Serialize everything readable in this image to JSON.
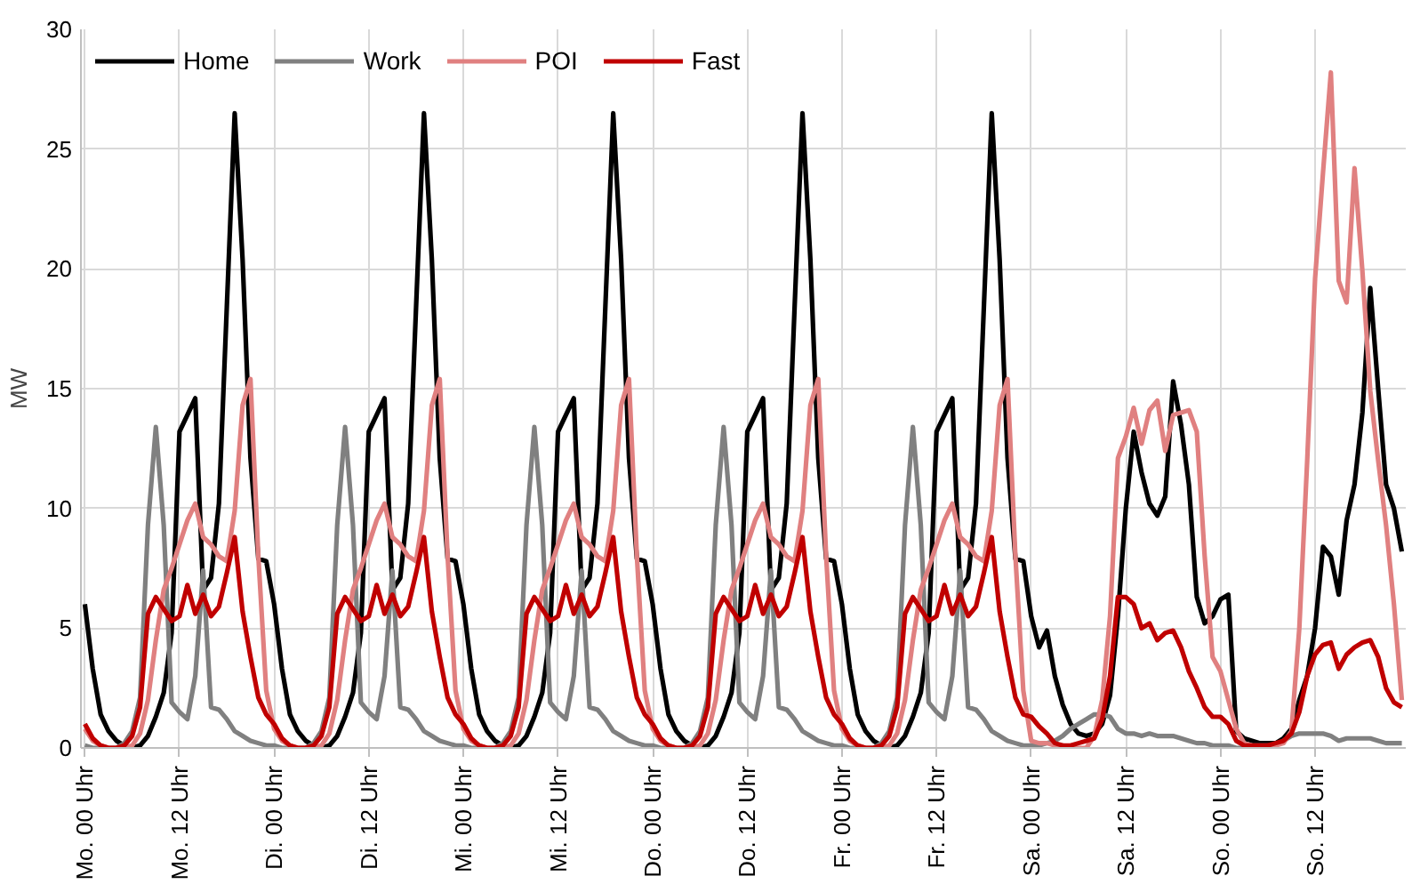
{
  "chart_data": {
    "type": "line",
    "ylabel": "MW",
    "ylim": [
      0,
      30
    ],
    "yticks": [
      0,
      5,
      10,
      15,
      20,
      25,
      30
    ],
    "categories": [
      "Mo. 00 Uhr",
      null,
      null,
      null,
      null,
      null,
      null,
      null,
      null,
      null,
      null,
      null,
      "Mo. 12 Uhr",
      null,
      null,
      null,
      null,
      null,
      null,
      null,
      null,
      null,
      null,
      null,
      "Di. 00 Uhr",
      null,
      null,
      null,
      null,
      null,
      null,
      null,
      null,
      null,
      null,
      null,
      "Di. 12 Uhr",
      null,
      null,
      null,
      null,
      null,
      null,
      null,
      null,
      null,
      null,
      null,
      "Mi. 00 Uhr",
      null,
      null,
      null,
      null,
      null,
      null,
      null,
      null,
      null,
      null,
      null,
      "Mi. 12 Uhr",
      null,
      null,
      null,
      null,
      null,
      null,
      null,
      null,
      null,
      null,
      null,
      "Do. 00 Uhr",
      null,
      null,
      null,
      null,
      null,
      null,
      null,
      null,
      null,
      null,
      null,
      "Do. 12 Uhr",
      null,
      null,
      null,
      null,
      null,
      null,
      null,
      null,
      null,
      null,
      null,
      "Fr. 00 Uhr",
      null,
      null,
      null,
      null,
      null,
      null,
      null,
      null,
      null,
      null,
      null,
      "Fr. 12 Uhr",
      null,
      null,
      null,
      null,
      null,
      null,
      null,
      null,
      null,
      null,
      null,
      "Sa. 00 Uhr",
      null,
      null,
      null,
      null,
      null,
      null,
      null,
      null,
      null,
      null,
      null,
      "Sa. 12 Uhr",
      null,
      null,
      null,
      null,
      null,
      null,
      null,
      null,
      null,
      null,
      null,
      "So. 00 Uhr",
      null,
      null,
      null,
      null,
      null,
      null,
      null,
      null,
      null,
      null,
      null,
      "So. 12 Uhr",
      null,
      null,
      null,
      null,
      null,
      null,
      null,
      null,
      null,
      null,
      null
    ],
    "grid": true,
    "legend": "top left",
    "marker": "none",
    "line_style": "solid",
    "series": [
      {
        "name": "Home",
        "color": "#000000",
        "values": [
          6.0,
          3.3,
          1.4,
          0.7,
          0.3,
          0.1,
          0,
          0.1,
          0.5,
          1.3,
          2.3,
          4.8,
          13.2,
          13.9,
          14.6,
          6.6,
          7.1,
          10.2,
          18.4,
          26.5,
          20.4,
          12.1,
          7.9,
          7.8,
          6.0,
          3.3,
          1.4,
          0.7,
          0.3,
          0.1,
          0,
          0.1,
          0.5,
          1.3,
          2.3,
          4.8,
          13.2,
          13.9,
          14.6,
          6.6,
          7.1,
          10.2,
          18.4,
          26.5,
          20.4,
          12.1,
          7.9,
          7.8,
          6.0,
          3.3,
          1.4,
          0.7,
          0.3,
          0.1,
          0,
          0.1,
          0.5,
          1.3,
          2.3,
          4.8,
          13.2,
          13.9,
          14.6,
          6.6,
          7.1,
          10.2,
          18.4,
          26.5,
          20.4,
          12.1,
          7.9,
          7.8,
          6.0,
          3.3,
          1.4,
          0.7,
          0.3,
          0.1,
          0,
          0.1,
          0.5,
          1.3,
          2.3,
          4.8,
          13.2,
          13.9,
          14.6,
          6.6,
          7.1,
          10.2,
          18.4,
          26.5,
          20.4,
          12.1,
          7.9,
          7.8,
          6.0,
          3.3,
          1.4,
          0.7,
          0.3,
          0.1,
          0,
          0.1,
          0.5,
          1.3,
          2.3,
          4.8,
          13.2,
          13.9,
          14.6,
          6.6,
          7.1,
          10.2,
          18.4,
          26.5,
          20.4,
          12.1,
          7.9,
          7.8,
          5.5,
          4.2,
          4.9,
          3.0,
          1.8,
          1.0,
          0.6,
          0.5,
          0.6,
          1.0,
          2.2,
          5.5,
          10.0,
          13.2,
          11.5,
          10.2,
          9.7,
          10.5,
          15.3,
          13.5,
          11.0,
          6.3,
          5.2,
          5.5,
          6.2,
          6.4,
          0.7,
          0.4,
          0.3,
          0.2,
          0.2,
          0.2,
          0.4,
          0.8,
          2.0,
          3.0,
          5.0,
          8.4,
          8.0,
          6.4,
          9.5,
          11.0,
          14.0,
          19.2,
          15.0,
          11.0,
          10.0,
          8.2
        ]
      },
      {
        "name": "Work",
        "color": "#808080",
        "values": [
          0.1,
          0,
          0,
          0,
          0,
          0.2,
          0.7,
          2.1,
          9.3,
          13.4,
          9.3,
          1.9,
          1.5,
          1.2,
          3.0,
          7.4,
          1.7,
          1.6,
          1.2,
          0.7,
          0.5,
          0.3,
          0.2,
          0.1,
          0.1,
          0,
          0,
          0,
          0,
          0.2,
          0.7,
          2.1,
          9.3,
          13.4,
          9.3,
          1.9,
          1.5,
          1.2,
          3.0,
          7.4,
          1.7,
          1.6,
          1.2,
          0.7,
          0.5,
          0.3,
          0.2,
          0.1,
          0.1,
          0,
          0,
          0,
          0,
          0.2,
          0.7,
          2.1,
          9.3,
          13.4,
          9.3,
          1.9,
          1.5,
          1.2,
          3.0,
          7.4,
          1.7,
          1.6,
          1.2,
          0.7,
          0.5,
          0.3,
          0.2,
          0.1,
          0.1,
          0,
          0,
          0,
          0,
          0.2,
          0.7,
          2.1,
          9.3,
          13.4,
          9.3,
          1.9,
          1.5,
          1.2,
          3.0,
          7.4,
          1.7,
          1.6,
          1.2,
          0.7,
          0.5,
          0.3,
          0.2,
          0.1,
          0.1,
          0,
          0,
          0,
          0,
          0.2,
          0.7,
          2.1,
          9.3,
          13.4,
          9.3,
          1.9,
          1.5,
          1.2,
          3.0,
          7.4,
          1.7,
          1.6,
          1.2,
          0.7,
          0.5,
          0.3,
          0.2,
          0.1,
          0.1,
          0.1,
          0.2,
          0.3,
          0.5,
          0.8,
          1.0,
          1.2,
          1.4,
          1.4,
          1.3,
          0.8,
          0.6,
          0.6,
          0.5,
          0.6,
          0.5,
          0.5,
          0.5,
          0.4,
          0.3,
          0.2,
          0.2,
          0.1,
          0.1,
          0.1,
          0,
          0,
          0,
          0,
          0,
          0.1,
          0.3,
          0.5,
          0.6,
          0.6,
          0.6,
          0.6,
          0.5,
          0.3,
          0.4,
          0.4,
          0.4,
          0.4,
          0.3,
          0.2,
          0.2,
          0.2
        ]
      },
      {
        "name": "POI",
        "color": "#e08080",
        "values": [
          0.8,
          0.3,
          0.1,
          0,
          0,
          0,
          0.1,
          0.6,
          2.0,
          4.5,
          6.6,
          7.5,
          8.5,
          9.5,
          10.2,
          8.8,
          8.5,
          8.0,
          7.8,
          9.9,
          14.3,
          15.4,
          8.0,
          2.4,
          0.8,
          0.3,
          0.1,
          0,
          0,
          0,
          0.1,
          0.6,
          2.0,
          4.5,
          6.6,
          7.5,
          8.5,
          9.5,
          10.2,
          8.8,
          8.5,
          8.0,
          7.8,
          9.9,
          14.3,
          15.4,
          8.0,
          2.4,
          0.8,
          0.3,
          0.1,
          0,
          0,
          0,
          0.1,
          0.6,
          2.0,
          4.5,
          6.6,
          7.5,
          8.5,
          9.5,
          10.2,
          8.8,
          8.5,
          8.0,
          7.8,
          9.9,
          14.3,
          15.4,
          8.0,
          2.4,
          0.8,
          0.3,
          0.1,
          0,
          0,
          0,
          0.1,
          0.6,
          2.0,
          4.5,
          6.6,
          7.5,
          8.5,
          9.5,
          10.2,
          8.8,
          8.5,
          8.0,
          7.8,
          9.9,
          14.3,
          15.4,
          8.0,
          2.4,
          0.8,
          0.3,
          0.1,
          0,
          0,
          0,
          0.1,
          0.6,
          2.0,
          4.5,
          6.6,
          7.5,
          8.5,
          9.5,
          10.2,
          8.8,
          8.5,
          8.0,
          7.8,
          9.9,
          14.3,
          15.4,
          8.0,
          2.4,
          0.3,
          0.2,
          0.2,
          0.1,
          0.1,
          0,
          0,
          0,
          0.5,
          2.0,
          5.5,
          12.1,
          13.0,
          14.2,
          12.7,
          14.1,
          14.5,
          12.4,
          13.9,
          14.0,
          14.1,
          13.2,
          8.0,
          3.8,
          3.2,
          2.0,
          0.8,
          0.2,
          0.1,
          0.1,
          0.1,
          0.1,
          0.2,
          0.7,
          5.0,
          12.0,
          19.6,
          24.0,
          28.2,
          19.5,
          18.6,
          24.2,
          19.9,
          14.9,
          12.0,
          9.3,
          6.0,
          2.0
        ]
      },
      {
        "name": "Fast",
        "color": "#c00000",
        "values": [
          1.0,
          0.4,
          0.1,
          0,
          0,
          0.1,
          0.5,
          1.7,
          5.6,
          6.3,
          5.8,
          5.3,
          5.5,
          6.8,
          5.6,
          6.4,
          5.5,
          5.9,
          7.3,
          8.8,
          5.7,
          3.8,
          2.1,
          1.4,
          1.0,
          0.4,
          0.1,
          0,
          0,
          0.1,
          0.5,
          1.7,
          5.6,
          6.3,
          5.8,
          5.3,
          5.5,
          6.8,
          5.6,
          6.4,
          5.5,
          5.9,
          7.3,
          8.8,
          5.7,
          3.8,
          2.1,
          1.4,
          1.0,
          0.4,
          0.1,
          0,
          0,
          0.1,
          0.5,
          1.7,
          5.6,
          6.3,
          5.8,
          5.3,
          5.5,
          6.8,
          5.6,
          6.4,
          5.5,
          5.9,
          7.3,
          8.8,
          5.7,
          3.8,
          2.1,
          1.4,
          1.0,
          0.4,
          0.1,
          0,
          0,
          0.1,
          0.5,
          1.7,
          5.6,
          6.3,
          5.8,
          5.3,
          5.5,
          6.8,
          5.6,
          6.4,
          5.5,
          5.9,
          7.3,
          8.8,
          5.7,
          3.8,
          2.1,
          1.4,
          1.0,
          0.4,
          0.1,
          0,
          0,
          0.1,
          0.5,
          1.7,
          5.6,
          6.3,
          5.8,
          5.3,
          5.5,
          6.8,
          5.6,
          6.4,
          5.5,
          5.9,
          7.3,
          8.8,
          5.7,
          3.8,
          2.1,
          1.4,
          1.3,
          0.9,
          0.6,
          0.2,
          0.1,
          0.1,
          0.2,
          0.3,
          0.4,
          1.2,
          3.0,
          6.3,
          6.3,
          6.0,
          5.0,
          5.2,
          4.5,
          4.8,
          4.9,
          4.2,
          3.2,
          2.5,
          1.7,
          1.3,
          1.3,
          1.0,
          0.3,
          0.1,
          0.1,
          0.1,
          0.1,
          0.2,
          0.3,
          0.6,
          1.5,
          3.0,
          3.9,
          4.3,
          4.4,
          3.3,
          3.9,
          4.2,
          4.4,
          4.5,
          3.8,
          2.5,
          1.9,
          1.7
        ]
      }
    ]
  }
}
